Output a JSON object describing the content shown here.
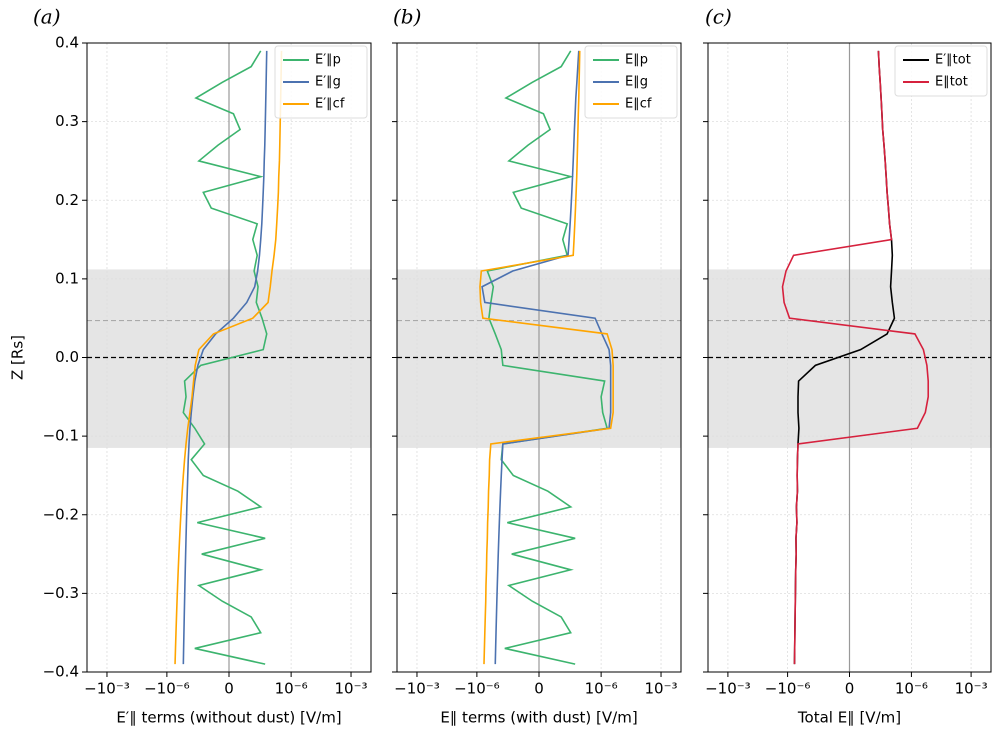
{
  "chart_data": [
    {
      "type": "line",
      "title": "(a)",
      "xlabel": "E′∥ terms (without dust) [V/m]",
      "ylabel": "Z [Rs]",
      "xscale": "symlog",
      "linthresh": 1e-08,
      "xlim": [
        -0.01,
        0.01
      ],
      "xticks": [
        {
          "value": -0.001,
          "label": "−10⁻³"
        },
        {
          "value": -1e-06,
          "label": "−10⁻⁶"
        },
        0,
        {
          "value": 1e-06,
          "label": "10⁻⁶"
        },
        {
          "value": 0.001,
          "label": "10⁻³"
        }
      ],
      "ylim": [
        -0.4,
        0.4
      ],
      "yticks": [
        {
          "value": -0.4,
          "label": "−0.4"
        },
        {
          "value": -0.3,
          "label": "−0.3"
        },
        {
          "value": -0.2,
          "label": "−0.2"
        },
        {
          "value": -0.1,
          "label": "−0.1"
        },
        {
          "value": 0,
          "label": "0.0"
        },
        0.1,
        0.2,
        0.3,
        0.4
      ],
      "ytick_labels": true,
      "grid": true,
      "legend": "upper right",
      "zero_line": true,
      "shaded_band": [
        -0.115,
        0.112
      ],
      "hlines": [
        {
          "y": 0,
          "color": "#000000"
        },
        {
          "y": 0.047,
          "color": "#aaaaaa"
        }
      ],
      "y": [
        0.39,
        0.37,
        0.35,
        0.33,
        0.31,
        0.29,
        0.27,
        0.25,
        0.23,
        0.21,
        0.19,
        0.17,
        0.15,
        0.13,
        0.11,
        0.09,
        0.07,
        0.05,
        0.03,
        0.01,
        -0.01,
        -0.03,
        -0.05,
        -0.07,
        -0.09,
        -0.11,
        -0.13,
        -0.15,
        -0.17,
        -0.19,
        -0.21,
        -0.23,
        -0.25,
        -0.27,
        -0.29,
        -0.31,
        -0.33,
        -0.35,
        -0.37,
        -0.39
      ],
      "series": [
        {
          "name": "E′∥p",
          "color": "#3cb46e",
          "values": [
            3e-08,
            1e-08,
            -3e-09,
            -3.5e-08,
            2e-09,
            5e-09,
            -5e-09,
            -2.5e-08,
            3e-08,
            -1.5e-08,
            -8e-09,
            2e-08,
            1.2e-08,
            2e-08,
            1.4e-08,
            2.2e-08,
            1.8e-08,
            3.5e-08,
            6e-08,
            4e-08,
            -2e-08,
            -1.3e-07,
            -1.1e-07,
            -1.5e-07,
            -4e-08,
            -1.3e-08,
            -6e-08,
            -1.5e-08,
            4e-09,
            3e-08,
            -3e-08,
            5e-08,
            -1.8e-08,
            3e-08,
            -2.5e-08,
            -3e-09,
            1e-08,
            3e-08,
            -4e-08,
            5e-08
          ]
        },
        {
          "name": "E′∥g",
          "color": "#4c72b0",
          "values": [
            6e-08,
            5.8e-08,
            5.6e-08,
            5.4e-08,
            5.2e-08,
            5e-08,
            4.8e-08,
            4.5e-08,
            4.3e-08,
            4e-08,
            3.7e-08,
            3.4e-08,
            3e-08,
            2.6e-08,
            2.1e-08,
            1.5e-08,
            8e-09,
            2e-09,
            -6e-09,
            -1.5e-08,
            -2.8e-08,
            -4e-08,
            -5e-08,
            -6e-08,
            -7e-08,
            -7.8e-08,
            -8.5e-08,
            -9e-08,
            -9.5e-08,
            -1e-07,
            -1.05e-07,
            -1.1e-07,
            -1.15e-07,
            -1.2e-07,
            -1.25e-07,
            -1.3e-07,
            -1.35e-07,
            -1.4e-07,
            -1.45e-07,
            -1.5e-07
          ]
        },
        {
          "name": "E′∥cf",
          "color": "#ffa500",
          "values": [
            3.3e-07,
            3.2e-07,
            3.1e-07,
            3e-07,
            2.9e-07,
            2.8e-07,
            2.7e-07,
            2.6e-07,
            2.4e-07,
            2.3e-07,
            2.1e-07,
            1.9e-07,
            1.7e-07,
            1.4e-07,
            1.1e-07,
            9e-08,
            7e-08,
            1.2e-08,
            -7e-09,
            -2.5e-08,
            -3.8e-08,
            -4.6e-08,
            -5.5e-08,
            -7e-08,
            -9e-08,
            -1.1e-07,
            -1.3e-07,
            -1.5e-07,
            -1.7e-07,
            -1.9e-07,
            -2.1e-07,
            -2.3e-07,
            -2.5e-07,
            -2.7e-07,
            -2.9e-07,
            -3.1e-07,
            -3.3e-07,
            -3.5e-07,
            -3.7e-07,
            -3.9e-07
          ]
        }
      ]
    },
    {
      "type": "line",
      "title": "(b)",
      "xlabel": "E∥ terms (with dust) [V/m]",
      "xscale": "symlog",
      "linthresh": 1e-08,
      "xlim": [
        -0.01,
        0.01
      ],
      "xticks": [
        {
          "value": -0.001,
          "label": "−10⁻³"
        },
        {
          "value": -1e-06,
          "label": "−10⁻⁶"
        },
        0,
        {
          "value": 1e-06,
          "label": "10⁻⁶"
        },
        {
          "value": 0.001,
          "label": "10⁻³"
        }
      ],
      "ylim": [
        -0.4,
        0.4
      ],
      "yticks": [
        -0.4,
        -0.3,
        -0.2,
        -0.1,
        0,
        0.1,
        0.2,
        0.3,
        0.4
      ],
      "ytick_labels": false,
      "grid": true,
      "legend": "upper right",
      "zero_line": true,
      "shaded_band": [
        -0.115,
        0.112
      ],
      "hlines": [
        {
          "y": 0,
          "color": "#000000"
        },
        {
          "y": 0.047,
          "color": "#aaaaaa"
        }
      ],
      "y": [
        0.39,
        0.37,
        0.35,
        0.33,
        0.31,
        0.29,
        0.27,
        0.25,
        0.23,
        0.21,
        0.19,
        0.17,
        0.15,
        0.13,
        0.11,
        0.09,
        0.07,
        0.05,
        0.03,
        0.01,
        -0.01,
        -0.03,
        -0.05,
        -0.07,
        -0.09,
        -0.11,
        -0.13,
        -0.15,
        -0.17,
        -0.19,
        -0.21,
        -0.23,
        -0.25,
        -0.27,
        -0.29,
        -0.31,
        -0.33,
        -0.35,
        -0.37,
        -0.39
      ],
      "series": [
        {
          "name": "E∥p",
          "color": "#3cb46e",
          "values": [
            3e-08,
            1e-08,
            -3e-09,
            -3.5e-08,
            2e-09,
            5e-09,
            -5e-09,
            -2.5e-08,
            3e-08,
            -1.5e-08,
            -8e-09,
            2e-08,
            1.2e-08,
            2e-08,
            -3e-07,
            -1.5e-07,
            -2e-07,
            -2.5e-07,
            -1.2e-07,
            -6e-08,
            -5e-08,
            1.5e-06,
            1e-06,
            1.2e-06,
            2e-06,
            -5e-08,
            -6e-08,
            -1.5e-08,
            4e-09,
            3e-08,
            -3e-08,
            5e-08,
            -1.8e-08,
            3e-08,
            -2.5e-08,
            -3e-09,
            1e-08,
            3e-08,
            -4e-08,
            5e-08
          ]
        },
        {
          "name": "E∥g",
          "color": "#4c72b0",
          "values": [
            7.6e-08,
            6.8e-08,
            6.1e-08,
            5.4e-08,
            5e-08,
            4.6e-08,
            4.3e-08,
            4e-08,
            3.7e-08,
            3.4e-08,
            3.1e-08,
            2.8e-08,
            2.5e-08,
            2.2e-08,
            -1.6e-08,
            -5.5e-07,
            -4e-07,
            5e-07,
            1.1e-06,
            2.5e-06,
            3e-06,
            3e-06,
            3e-06,
            3e-06,
            2.5e-06,
            -5e-08,
            -5.5e-08,
            -6e-08,
            -6.5e-08,
            -7e-08,
            -7.5e-08,
            -8e-08,
            -8.5e-08,
            -9e-08,
            -9.5e-08,
            -1e-07,
            -1.05e-07,
            -1.1e-07,
            -1.15e-07,
            -1.2e-07
          ]
        },
        {
          "name": "E∥cf",
          "color": "#ffa500",
          "values": [
            8.5e-08,
            8.2e-08,
            7.9e-08,
            7.6e-08,
            7.2e-08,
            6.9e-08,
            6.6e-08,
            6.3e-08,
            6e-08,
            5.6e-08,
            5.2e-08,
            4.8e-08,
            4.4e-08,
            4e-08,
            -6e-07,
            -7e-07,
            -6.5e-07,
            -5e-07,
            2e-06,
            3.5e-06,
            4e-06,
            4e-06,
            4e-06,
            4e-06,
            3e-06,
            -2e-07,
            -2.3e-07,
            -2.4e-07,
            -2.6e-07,
            -2.7e-07,
            -2.9e-07,
            -3e-07,
            -3.2e-07,
            -3.3e-07,
            -3.5e-07,
            -3.6e-07,
            -3.8e-07,
            -4e-07,
            -4.2e-07,
            -4.4e-07
          ]
        }
      ]
    },
    {
      "type": "line",
      "title": "(c)",
      "xlabel": "Total E∥ [V/m]",
      "xscale": "symlog",
      "linthresh": 1e-08,
      "xlim": [
        -0.01,
        0.01
      ],
      "xticks": [
        {
          "value": -0.001,
          "label": "−10⁻³"
        },
        {
          "value": -1e-06,
          "label": "−10⁻⁶"
        },
        0,
        {
          "value": 1e-06,
          "label": "10⁻⁶"
        },
        {
          "value": 0.001,
          "label": "10⁻³"
        }
      ],
      "ylim": [
        -0.4,
        0.4
      ],
      "yticks": [
        -0.4,
        -0.3,
        -0.2,
        -0.1,
        0,
        0.1,
        0.2,
        0.3,
        0.4
      ],
      "ytick_labels": false,
      "grid": true,
      "legend": "upper right",
      "zero_line": true,
      "shaded_band": [
        -0.115,
        0.112
      ],
      "hlines": [
        {
          "y": 0,
          "color": "#000000"
        },
        {
          "y": 0.047,
          "color": "#aaaaaa"
        }
      ],
      "y": [
        0.39,
        0.37,
        0.35,
        0.33,
        0.31,
        0.29,
        0.27,
        0.25,
        0.23,
        0.21,
        0.19,
        0.17,
        0.15,
        0.13,
        0.11,
        0.09,
        0.07,
        0.05,
        0.03,
        0.01,
        -0.01,
        -0.03,
        -0.05,
        -0.07,
        -0.09,
        -0.11,
        -0.13,
        -0.15,
        -0.17,
        -0.19,
        -0.21,
        -0.23,
        -0.25,
        -0.27,
        -0.29,
        -0.31,
        -0.33,
        -0.35,
        -0.37,
        -0.39
      ],
      "series": [
        {
          "name": "E′∥tot",
          "color": "#000000",
          "values": [
            2.2e-08,
            2.4e-08,
            2.7e-08,
            3e-08,
            3.3e-08,
            3.6e-08,
            4.2e-08,
            4.8e-08,
            5.4e-08,
            6e-08,
            7e-08,
            8e-08,
            1e-07,
            1.1e-07,
            1e-07,
            9e-08,
            1.1e-07,
            1.4e-07,
            6e-08,
            5e-09,
            -4e-08,
            -2.8e-07,
            -3e-07,
            -3e-07,
            -2.7e-07,
            -3e-07,
            -3.2e-07,
            -3.3e-07,
            -3.2e-07,
            -3.6e-07,
            -3.4e-07,
            -3.8e-07,
            -3.7e-07,
            -3.9e-07,
            -4e-07,
            -4.1e-07,
            -4.2e-07,
            -4.3e-07,
            -4.4e-07,
            -4.5e-07
          ]
        },
        {
          "name": "E∥tot",
          "color": "#d6213d",
          "values": [
            2.2e-08,
            2.4e-08,
            2.7e-08,
            3e-08,
            3.3e-08,
            3.6e-08,
            4.2e-08,
            4.8e-08,
            5.4e-08,
            6e-08,
            7e-08,
            8e-08,
            1e-07,
            -5e-07,
            -1.2e-06,
            -1.8e-06,
            -1.5e-06,
            -8e-07,
            1.5e-06,
            4e-06,
            6e-06,
            7e-06,
            7e-06,
            5e-06,
            2e-06,
            -3e-07,
            -3.2e-07,
            -3.3e-07,
            -3.2e-07,
            -3.6e-07,
            -3.4e-07,
            -3.8e-07,
            -3.7e-07,
            -3.9e-07,
            -4e-07,
            -4.1e-07,
            -4.2e-07,
            -4.3e-07,
            -4.4e-07,
            -4.5e-07
          ]
        }
      ]
    }
  ]
}
